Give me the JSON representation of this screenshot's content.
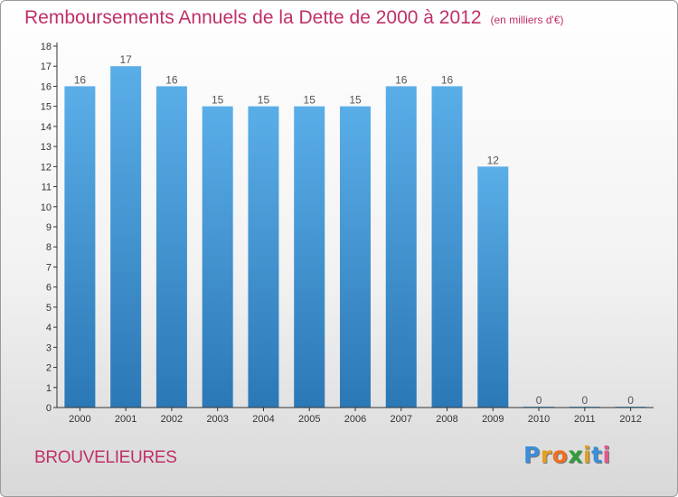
{
  "chart_data": {
    "type": "bar",
    "title": "Remboursements Annuels de la Dette de 2000 à 2012",
    "unit_note": "(en milliers d'€)",
    "categories": [
      "2000",
      "2001",
      "2002",
      "2003",
      "2004",
      "2005",
      "2006",
      "2007",
      "2008",
      "2009",
      "2010",
      "2011",
      "2012"
    ],
    "values": [
      16,
      17,
      16,
      15,
      15,
      15,
      15,
      16,
      16,
      12,
      0,
      0,
      0
    ],
    "ylim": [
      0,
      18
    ],
    "yticks": [
      "0",
      "1",
      "2",
      "3",
      "4",
      "5",
      "6",
      "7",
      "8",
      "9",
      "10",
      "11",
      "12",
      "13",
      "14",
      "15",
      "16",
      "17",
      "18"
    ],
    "grid": false,
    "legend": "none",
    "colors": {
      "bar_top": "#5aaee8",
      "bar_bottom": "#2b78b6",
      "title": "#c0306a"
    }
  },
  "footer": {
    "commune": "BROUVELIEURES"
  },
  "brand": {
    "letters": [
      "P",
      "r",
      "o",
      "x",
      "i",
      "t",
      "i"
    ],
    "colors": [
      "#3b8ed8",
      "#e6a020",
      "#f07020",
      "#2f9e3a",
      "#e0a020",
      "#3b8ed8",
      "#e05a90"
    ]
  }
}
